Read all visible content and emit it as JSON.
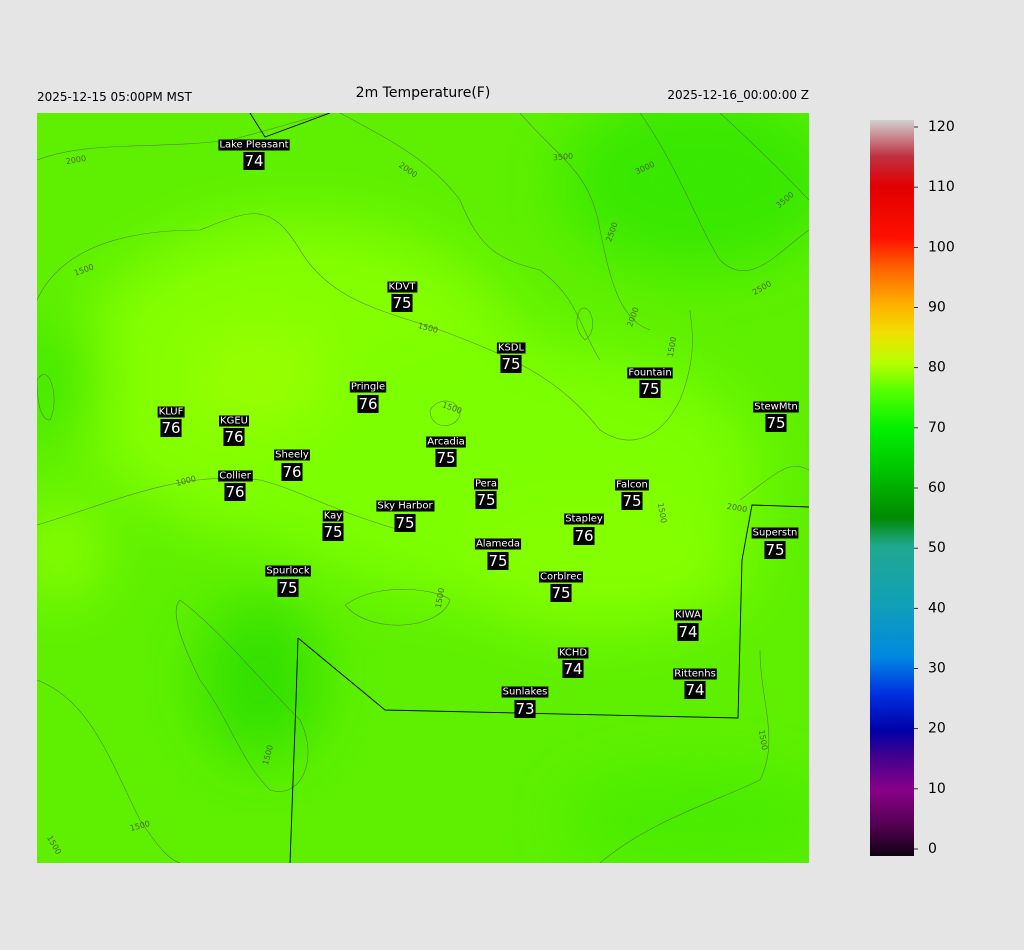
{
  "header": {
    "left": "2025-12-15 05:00PM MST",
    "title": "2m Temperature(F)",
    "right": "2025-12-16_00:00:00 Z"
  },
  "stations": [
    {
      "name": "Lake Pleasant",
      "value": 74
    },
    {
      "name": "KDVT",
      "value": 75
    },
    {
      "name": "KSDL",
      "value": 75
    },
    {
      "name": "Fountain",
      "value": 75
    },
    {
      "name": "Pringle",
      "value": 76
    },
    {
      "name": "StewMtn",
      "value": 75
    },
    {
      "name": "KLUF",
      "value": 76
    },
    {
      "name": "KGEU",
      "value": 76
    },
    {
      "name": "Arcadia",
      "value": 75
    },
    {
      "name": "Sheely",
      "value": 76
    },
    {
      "name": "Collier",
      "value": 76
    },
    {
      "name": "Pera",
      "value": 75
    },
    {
      "name": "Falcon",
      "value": 75
    },
    {
      "name": "Sky Harbor",
      "value": 75
    },
    {
      "name": "Kay",
      "value": 75
    },
    {
      "name": "Stapley",
      "value": 76
    },
    {
      "name": "Superstn",
      "value": 75
    },
    {
      "name": "Alameda",
      "value": 75
    },
    {
      "name": "Spurlock",
      "value": 75
    },
    {
      "name": "Corblrec",
      "value": 75
    },
    {
      "name": "KIWA",
      "value": 74
    },
    {
      "name": "KCHD",
      "value": 74
    },
    {
      "name": "Rittenhs",
      "value": 74
    },
    {
      "name": "Sunlakes",
      "value": 73
    }
  ],
  "contour_labels": [
    "2000",
    "2000",
    "3500",
    "3000",
    "3500",
    "2500",
    "2500",
    "2000",
    "1500",
    "1500",
    "1500",
    "1500",
    "1000",
    "1500",
    "2000",
    "1500",
    "1500",
    "1500",
    "1500",
    "1500"
  ],
  "colorbar": {
    "lim": [
      0,
      120
    ],
    "ticks": [
      0,
      10,
      20,
      30,
      40,
      50,
      60,
      70,
      80,
      90,
      100,
      110,
      120
    ]
  }
}
